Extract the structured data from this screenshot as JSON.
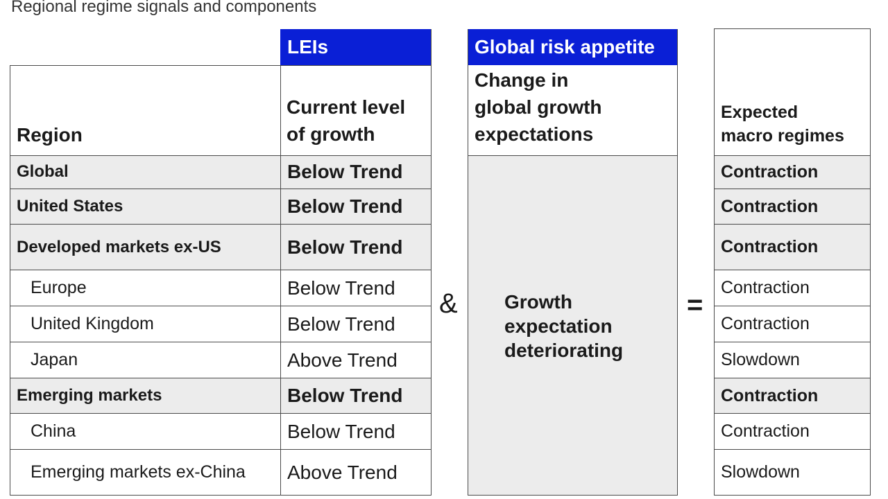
{
  "title": "Regional regime signals and components",
  "groups": {
    "leis": "LEIs",
    "global_risk": "Global risk appetite"
  },
  "headers": {
    "region": "Region",
    "current_level_line1": "Current level",
    "current_level_line2": "of growth",
    "change_line1": "Change in",
    "change_line2": "global growth",
    "change_line3": "expectations",
    "expected_line1": "Expected",
    "expected_line2": "macro regimes"
  },
  "operators": {
    "and": "&",
    "equals": "="
  },
  "merged": {
    "line1": "Growth",
    "line2": "expectation",
    "line3": "deteriorating"
  },
  "rows": [
    {
      "region": "Global",
      "level": "Below Trend",
      "regime": "Contraction",
      "bold": true,
      "indent": false
    },
    {
      "region": "United States",
      "level": "Below Trend",
      "regime": "Contraction",
      "bold": true,
      "indent": false
    },
    {
      "region": "Developed markets ex-US",
      "level": "Below Trend",
      "regime": "Contraction",
      "bold": true,
      "indent": false
    },
    {
      "region": "Europe",
      "level": "Below Trend",
      "regime": "Contraction",
      "bold": false,
      "indent": true
    },
    {
      "region": "United Kingdom",
      "level": "Below Trend",
      "regime": "Contraction",
      "bold": false,
      "indent": true
    },
    {
      "region": "Japan",
      "level": "Above Trend",
      "regime": "Slowdown",
      "bold": false,
      "indent": true
    },
    {
      "region": "Emerging markets",
      "level": "Below Trend",
      "regime": "Contraction",
      "bold": true,
      "indent": false
    },
    {
      "region": "China",
      "level": "Below Trend",
      "regime": "Contraction",
      "bold": false,
      "indent": true
    },
    {
      "region": "Emerging markets ex-China",
      "level": "Above Trend",
      "regime": "Slowdown",
      "bold": false,
      "indent": true
    }
  ]
}
